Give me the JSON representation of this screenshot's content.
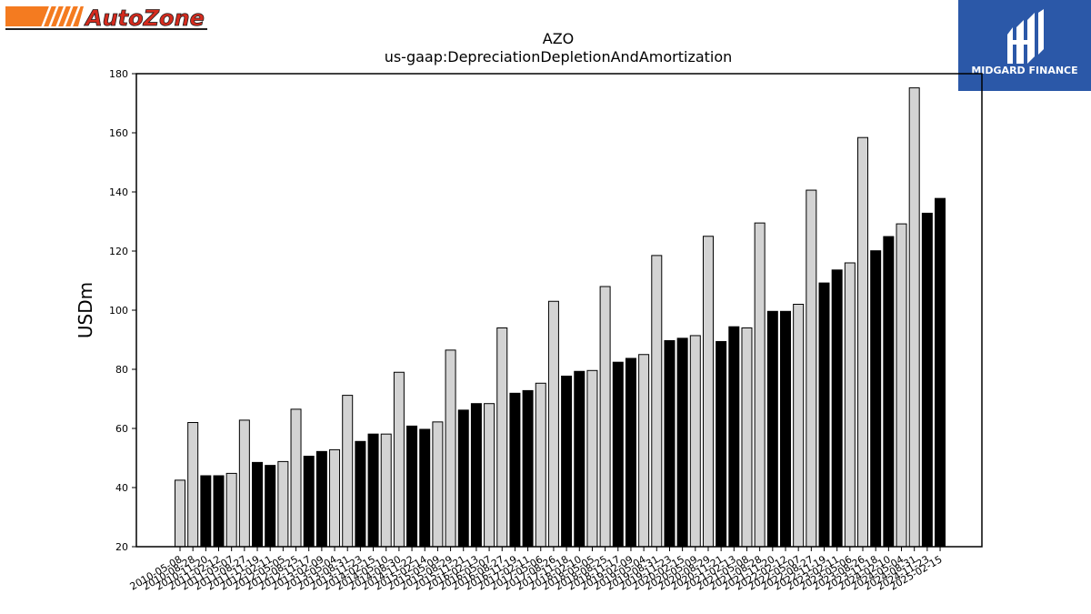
{
  "logos": {
    "left_text": "AutoZone",
    "right_text": "MIDGARD FINANCE",
    "left_colors": {
      "stripe": "#f47b20",
      "text": "#d52b1e"
    },
    "right_bg": "#2b58a8"
  },
  "chart_data": {
    "type": "bar",
    "title": "AZO",
    "subtitle": "us-gaap:DepreciationDepletionAndAmortization",
    "ylabel": "USDm",
    "xlabel": "",
    "ylim": [
      20,
      180
    ],
    "yticks": [
      20,
      40,
      60,
      80,
      100,
      120,
      140,
      160,
      180
    ],
    "grid": false,
    "colors": {
      "annual": "#d3d3d3",
      "quarterly": "#000000",
      "edge": "#000000"
    },
    "categories": [
      "2010-05-08",
      "2010-08-28",
      "2010-11-20",
      "2011-02-12",
      "2011-05-07",
      "2011-08-27",
      "2011-11-19",
      "2012-02-11",
      "2012-05-05",
      "2012-08-25",
      "2012-11-17",
      "2013-02-09",
      "2013-05-04",
      "2013-08-31",
      "2013-11-23",
      "2014-02-15",
      "2014-05-10",
      "2014-08-30",
      "2014-11-22",
      "2015-02-14",
      "2015-05-09",
      "2015-08-29",
      "2015-11-21",
      "2016-02-13",
      "2016-05-07",
      "2016-08-27",
      "2016-11-19",
      "2017-02-11",
      "2017-05-06",
      "2017-08-26",
      "2017-11-18",
      "2018-02-10",
      "2018-05-05",
      "2018-08-25",
      "2018-11-17",
      "2019-02-09",
      "2019-05-04",
      "2019-08-31",
      "2019-11-23",
      "2020-02-15",
      "2020-05-09",
      "2020-08-29",
      "2020-11-21",
      "2021-02-13",
      "2021-05-08",
      "2021-08-28",
      "2021-11-20",
      "2022-02-12",
      "2022-05-07",
      "2022-08-27",
      "2022-11-19",
      "2023-02-11",
      "2023-05-06",
      "2023-08-26",
      "2023-11-18",
      "2024-02-10",
      "2024-05-04",
      "2024-08-31",
      "2024-11-23",
      "2025-02-15"
    ],
    "values": [
      42.5,
      62.0,
      44.0,
      44.0,
      44.8,
      62.8,
      48.5,
      47.5,
      48.8,
      66.5,
      50.6,
      52.2,
      52.8,
      71.2,
      55.6,
      58.1,
      58.1,
      79.0,
      60.8,
      59.7,
      62.2,
      86.5,
      66.2,
      68.4,
      68.4,
      94.0,
      71.9,
      72.8,
      75.3,
      103.0,
      77.7,
      79.3,
      79.6,
      108.0,
      82.4,
      83.7,
      85.0,
      118.5,
      89.7,
      90.5,
      91.4,
      125.0,
      89.4,
      94.4,
      94.0,
      129.5,
      99.6,
      99.6,
      102.0,
      140.6,
      109.2,
      113.6,
      116.0,
      158.4,
      120.1,
      124.9,
      129.2,
      175.2,
      132.8,
      137.8
    ],
    "bar_types": [
      "a",
      "a",
      "q",
      "q",
      "a",
      "a",
      "q",
      "q",
      "a",
      "a",
      "q",
      "q",
      "a",
      "a",
      "q",
      "q",
      "a",
      "a",
      "q",
      "q",
      "a",
      "a",
      "q",
      "q",
      "a",
      "a",
      "q",
      "q",
      "a",
      "a",
      "q",
      "q",
      "a",
      "a",
      "q",
      "q",
      "a",
      "a",
      "q",
      "q",
      "a",
      "a",
      "q",
      "q",
      "a",
      "a",
      "q",
      "q",
      "a",
      "a",
      "q",
      "q",
      "a",
      "a",
      "q",
      "q",
      "a",
      "a",
      "q",
      "q"
    ]
  }
}
